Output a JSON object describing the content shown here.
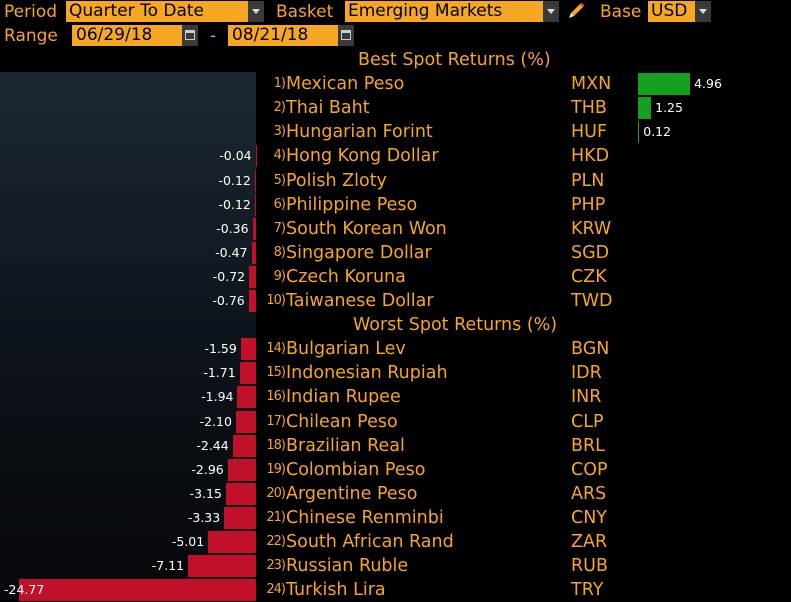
{
  "header": {
    "period_label": "Period",
    "period_value": "Quarter To Date",
    "basket_label": "Basket",
    "basket_value": "Emerging Markets",
    "base_label": "Base",
    "base_value": "USD",
    "range_label": "Range",
    "range_start": "06/29/18",
    "range_dash": "-",
    "range_end": "08/21/18"
  },
  "chart_data": {
    "type": "bar",
    "orientation": "horizontal",
    "sections": [
      {
        "title": "Best Spot Returns (%)",
        "rows": [
          {
            "rank": "1)",
            "name": "Mexican Peso",
            "code": "MXN",
            "value": 4.96,
            "label": "4.96"
          },
          {
            "rank": "2)",
            "name": "Thai Baht",
            "code": "THB",
            "value": 1.25,
            "label": "1.25"
          },
          {
            "rank": "3)",
            "name": "Hungarian Forint",
            "code": "HUF",
            "value": 0.12,
            "label": "0.12"
          },
          {
            "rank": "4)",
            "name": "Hong Kong Dollar",
            "code": "HKD",
            "value": -0.04,
            "label": "-0.04"
          },
          {
            "rank": "5)",
            "name": "Polish Zloty",
            "code": "PLN",
            "value": -0.12,
            "label": "-0.12"
          },
          {
            "rank": "6)",
            "name": "Philippine Peso",
            "code": "PHP",
            "value": -0.12,
            "label": "-0.12"
          },
          {
            "rank": "7)",
            "name": "South Korean Won",
            "code": "KRW",
            "value": -0.36,
            "label": "-0.36"
          },
          {
            "rank": "8)",
            "name": "Singapore Dollar",
            "code": "SGD",
            "value": -0.47,
            "label": "-0.47"
          },
          {
            "rank": "9)",
            "name": "Czech Koruna",
            "code": "CZK",
            "value": -0.72,
            "label": "-0.72"
          },
          {
            "rank": "10)",
            "name": "Taiwanese Dollar",
            "code": "TWD",
            "value": -0.76,
            "label": "-0.76"
          }
        ]
      },
      {
        "title": "Worst Spot Returns (%)",
        "rows": [
          {
            "rank": "14)",
            "name": "Bulgarian Lev",
            "code": "BGN",
            "value": -1.59,
            "label": "-1.59"
          },
          {
            "rank": "15)",
            "name": "Indonesian Rupiah",
            "code": "IDR",
            "value": -1.71,
            "label": "-1.71"
          },
          {
            "rank": "16)",
            "name": "Indian Rupee",
            "code": "INR",
            "value": -1.94,
            "label": "-1.94"
          },
          {
            "rank": "17)",
            "name": "Chilean Peso",
            "code": "CLP",
            "value": -2.1,
            "label": "-2.10"
          },
          {
            "rank": "18)",
            "name": "Brazilian Real",
            "code": "BRL",
            "value": -2.44,
            "label": "-2.44"
          },
          {
            "rank": "19)",
            "name": "Colombian Peso",
            "code": "COP",
            "value": -2.96,
            "label": "-2.96"
          },
          {
            "rank": "20)",
            "name": "Argentine Peso",
            "code": "ARS",
            "value": -3.15,
            "label": "-3.15"
          },
          {
            "rank": "21)",
            "name": "Chinese Renminbi",
            "code": "CNY",
            "value": -3.33,
            "label": "-3.33"
          },
          {
            "rank": "22)",
            "name": "South African Rand",
            "code": "ZAR",
            "value": -5.01,
            "label": "-5.01"
          },
          {
            "rank": "23)",
            "name": "Russian Ruble",
            "code": "RUB",
            "value": -7.11,
            "label": "-7.11"
          },
          {
            "rank": "24)",
            "name": "Turkish Lira",
            "code": "TRY",
            "value": -24.77,
            "label": "-24.77"
          }
        ]
      }
    ],
    "colors": {
      "positive": "#14a01e",
      "negative": "#c0102a",
      "text": "#f5a623",
      "value_text": "#ffffff"
    }
  }
}
